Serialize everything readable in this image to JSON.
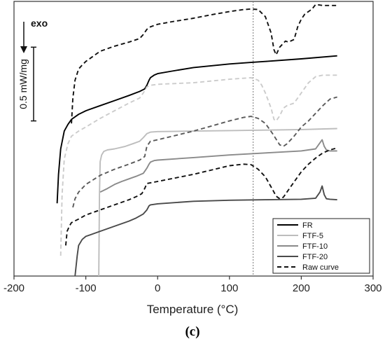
{
  "chart_data": {
    "type": "line",
    "xlabel": "Temperature (°C)",
    "xlim": [
      -200,
      300
    ],
    "xticks": [
      -200,
      -100,
      0,
      100,
      200,
      300
    ],
    "ylim": [
      0,
      5.4
    ],
    "panel_label": "(c)",
    "annotations": {
      "exo": "exo",
      "scale_bar": "0.5 mW/mg",
      "scale_value": 1.45,
      "reference_temperature": 133
    },
    "legend": [
      {
        "label": "FR",
        "color": "#000000",
        "dash": ""
      },
      {
        "label": "FTF-5",
        "color": "#bdbdbd",
        "dash": ""
      },
      {
        "label": "FTF-10",
        "color": "#8a8a8a",
        "dash": ""
      },
      {
        "label": "FTF-20",
        "color": "#4a4a4a",
        "dash": ""
      },
      {
        "label": "Raw curve",
        "color": "#111111",
        "dash": "6,4"
      }
    ],
    "series": [
      {
        "name": "FR",
        "color": "#000000",
        "dash": "",
        "x": [
          -140,
          -138,
          -135,
          -130,
          -125,
          -120,
          -110,
          -100,
          -80,
          -60,
          -40,
          -25,
          -18,
          -15,
          -12,
          -10,
          -5,
          0,
          20,
          50,
          100,
          130,
          150,
          200,
          250
        ],
        "y": [
          1.43,
          2.0,
          2.5,
          2.85,
          2.98,
          3.08,
          3.18,
          3.25,
          3.35,
          3.45,
          3.55,
          3.63,
          3.68,
          3.75,
          3.85,
          3.9,
          3.95,
          3.98,
          4.03,
          4.1,
          4.17,
          4.2,
          4.22,
          4.27,
          4.33
        ]
      },
      {
        "name": "Raw curve (FR)",
        "color": "#111111",
        "dash": "6,4",
        "x": [
          -120,
          -118,
          -115,
          -110,
          -105,
          -100,
          -90,
          -80,
          -60,
          -40,
          -25,
          -20,
          -15,
          -10,
          0,
          20,
          50,
          80,
          100,
          120,
          130,
          140,
          150,
          158,
          162,
          165,
          170,
          178,
          182,
          190,
          195,
          200,
          205,
          210,
          215,
          220,
          230,
          250
        ],
        "y": [
          3.0,
          3.5,
          3.85,
          4.07,
          4.15,
          4.22,
          4.32,
          4.42,
          4.52,
          4.6,
          4.67,
          4.75,
          4.85,
          4.9,
          4.95,
          5.0,
          5.07,
          5.15,
          5.2,
          5.24,
          5.25,
          5.24,
          5.1,
          4.78,
          4.45,
          4.35,
          4.5,
          4.62,
          4.6,
          4.65,
          4.9,
          5.05,
          5.15,
          5.2,
          5.25,
          5.34,
          5.32,
          5.32
        ]
      },
      {
        "name": "FTF-5",
        "color": "#bdbdbd",
        "dash": "",
        "x": [
          -82,
          -81,
          -80,
          -78,
          -75,
          -70,
          -60,
          -45,
          -35,
          -25,
          -20,
          -15,
          -10,
          0,
          50,
          100,
          150,
          200,
          250
        ],
        "y": [
          0,
          1.6,
          2.25,
          2.38,
          2.45,
          2.48,
          2.5,
          2.55,
          2.6,
          2.65,
          2.72,
          2.8,
          2.83,
          2.84,
          2.85,
          2.86,
          2.87,
          2.88,
          2.9
        ]
      },
      {
        "name": "Raw curve (FTF-5)",
        "color": "#cccccc",
        "dash": "6,4",
        "x": [
          -135,
          -133,
          -130,
          -125,
          -120,
          -110,
          -100,
          -80,
          -60,
          -40,
          -25,
          -20,
          -15,
          -10,
          0,
          50,
          100,
          130,
          140,
          145,
          150,
          158,
          162,
          165,
          170,
          175,
          180,
          190,
          200,
          210,
          220,
          230,
          250
        ],
        "y": [
          0.4,
          1.6,
          2.3,
          2.6,
          2.75,
          2.85,
          2.93,
          3.1,
          3.25,
          3.4,
          3.5,
          3.6,
          3.72,
          3.75,
          3.77,
          3.8,
          3.87,
          3.9,
          3.85,
          3.75,
          3.6,
          3.3,
          3.08,
          3.05,
          3.15,
          3.3,
          3.35,
          3.4,
          3.6,
          3.8,
          3.92,
          3.95,
          3.95
        ]
      },
      {
        "name": "FTF-10",
        "color": "#8a8a8a",
        "dash": "",
        "x": [
          -80,
          -70,
          -60,
          -50,
          -40,
          -30,
          -20,
          -15,
          -12,
          -10,
          -5,
          0,
          50,
          100,
          150,
          200,
          220,
          226,
          229,
          232,
          235,
          240,
          250
        ],
        "y": [
          1.65,
          1.72,
          1.8,
          1.86,
          1.91,
          1.96,
          2.02,
          2.12,
          2.2,
          2.24,
          2.27,
          2.28,
          2.33,
          2.38,
          2.42,
          2.46,
          2.5,
          2.62,
          2.68,
          2.55,
          2.48,
          2.46,
          2.46
        ]
      },
      {
        "name": "Raw curve (FTF-10)",
        "color": "#5a5a5a",
        "dash": "6,4",
        "x": [
          -118,
          -115,
          -110,
          -100,
          -80,
          -60,
          -40,
          -25,
          -18,
          -15,
          -10,
          0,
          50,
          100,
          120,
          130,
          140,
          150,
          160,
          170,
          175,
          180,
          190,
          200,
          210,
          220,
          230,
          240,
          250
        ],
        "y": [
          1.35,
          1.52,
          1.65,
          1.8,
          1.98,
          2.1,
          2.2,
          2.28,
          2.35,
          2.55,
          2.65,
          2.68,
          2.85,
          3.05,
          3.12,
          3.14,
          3.1,
          3.0,
          2.8,
          2.58,
          2.55,
          2.6,
          2.75,
          2.93,
          3.05,
          3.2,
          3.35,
          3.48,
          3.52
        ]
      },
      {
        "name": "FTF-20",
        "color": "#4a4a4a",
        "dash": "",
        "x": [
          -115,
          -112,
          -110,
          -105,
          -100,
          -80,
          -60,
          -40,
          -30,
          -20,
          -15,
          -12,
          -10,
          0,
          50,
          100,
          150,
          200,
          220,
          226,
          229,
          232,
          235,
          240,
          250
        ],
        "y": [
          0,
          0.4,
          0.6,
          0.72,
          0.78,
          0.88,
          0.98,
          1.08,
          1.14,
          1.22,
          1.3,
          1.38,
          1.4,
          1.42,
          1.47,
          1.49,
          1.5,
          1.51,
          1.53,
          1.65,
          1.77,
          1.6,
          1.52,
          1.51,
          1.5
        ]
      },
      {
        "name": "Raw curve (FTF-20)",
        "color": "#111111",
        "dash": "6,4",
        "x": [
          -128,
          -126,
          -123,
          -120,
          -110,
          -100,
          -80,
          -60,
          -40,
          -30,
          -22,
          -18,
          -15,
          0,
          50,
          100,
          120,
          130,
          140,
          150,
          160,
          165,
          170,
          175,
          180,
          190,
          200,
          210,
          220,
          230,
          240,
          250
        ],
        "y": [
          0.6,
          0.88,
          0.98,
          1.05,
          1.12,
          1.2,
          1.3,
          1.4,
          1.5,
          1.56,
          1.62,
          1.72,
          1.82,
          1.86,
          2.0,
          2.17,
          2.2,
          2.19,
          2.1,
          1.95,
          1.7,
          1.57,
          1.52,
          1.55,
          1.65,
          1.85,
          2.05,
          2.2,
          2.32,
          2.42,
          2.48,
          2.52
        ]
      }
    ]
  }
}
